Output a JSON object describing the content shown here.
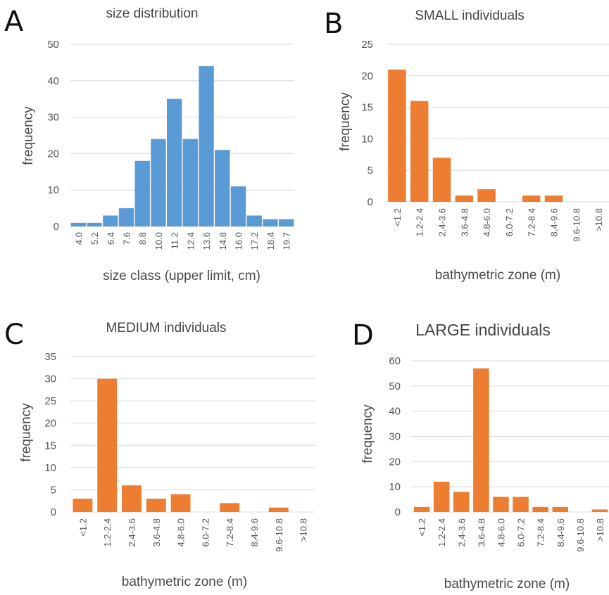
{
  "chart_data": [
    {
      "panel": "A",
      "type": "bar",
      "title": "size distribution",
      "xlabel": "size class (upper limit, cm)",
      "ylabel": "frequency",
      "color": "#5b9bd5",
      "categories": [
        "4.0",
        "5.2",
        "6.4",
        "7.6",
        "8.8",
        "10.0",
        "11.2",
        "12.4",
        "13.6",
        "14.8",
        "16.0",
        "17.2",
        "18.4",
        "19.7"
      ],
      "tick_labels_shown": [
        "4.0",
        "5.2",
        "6.4",
        "7.6",
        "8.8",
        "10.0",
        "11.2",
        "12.4",
        "13.6",
        "14.8",
        "16.0",
        "17.2",
        "18.4",
        "19.7"
      ],
      "values": [
        1,
        1,
        3,
        5,
        18,
        24,
        35,
        24,
        44,
        21,
        11,
        3,
        2,
        2
      ],
      "ylim": [
        0,
        50
      ],
      "yticks": [
        0,
        10,
        20,
        30,
        40,
        50
      ],
      "grid": true
    },
    {
      "panel": "B",
      "type": "bar",
      "title": "SMALL individuals",
      "xlabel": "bathymetric zone (m)",
      "ylabel": "frequency",
      "color": "#ed7d31",
      "categories": [
        "<1.2",
        "1.2-2.4",
        "2.4-3.6",
        "3.6-4.8",
        "4.8-6.0",
        "6.0-7.2",
        "7.2-8.4",
        "8.4-9.6",
        "9.6-10.8",
        ">10.8"
      ],
      "values": [
        21,
        16,
        7,
        1,
        2,
        0,
        1,
        1,
        0,
        0
      ],
      "ylim": [
        0,
        25
      ],
      "yticks": [
        0,
        5,
        10,
        15,
        20,
        25
      ],
      "grid": true
    },
    {
      "panel": "C",
      "type": "bar",
      "title": "MEDIUM individuals",
      "xlabel": "bathymetric zone (m)",
      "ylabel": "frequency",
      "color": "#ed7d31",
      "categories": [
        "<1.2",
        "1.2-2.4",
        "2.4-3.6",
        "3.6-4.8",
        "4.8-6.0",
        "6.0-7.2",
        "7.2-8.4",
        "8.4-9.6",
        "9.6-10.8",
        ">10.8"
      ],
      "values": [
        3,
        30,
        6,
        3,
        4,
        0,
        2,
        0,
        1,
        0
      ],
      "ylim": [
        0,
        35
      ],
      "yticks": [
        0,
        5,
        10,
        15,
        20,
        25,
        30,
        35
      ],
      "grid": true
    },
    {
      "panel": "D",
      "type": "bar",
      "title": "LARGE individuals",
      "xlabel": "bathymetric zone (m)",
      "ylabel": "frequency",
      "color": "#ed7d31",
      "categories": [
        "<1.2",
        "1.2-2.4",
        "2.4-3.6",
        "3.6-4.8",
        "4.8-6.0",
        "6.0-7.2",
        "7.2-8.4",
        "8.4-9.6",
        "9.6-10.8",
        ">10.8"
      ],
      "values": [
        2,
        12,
        8,
        57,
        6,
        6,
        2,
        2,
        0,
        1
      ],
      "ylim": [
        0,
        60
      ],
      "yticks": [
        0,
        10,
        20,
        30,
        40,
        50,
        60
      ],
      "grid": true
    }
  ]
}
